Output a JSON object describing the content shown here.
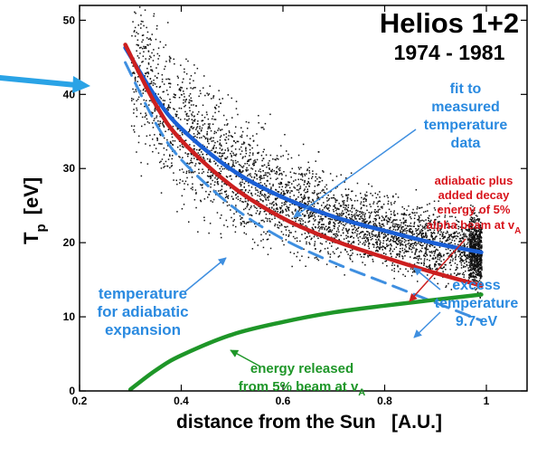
{
  "chart_data": {
    "type": "scatter",
    "title": "Helios 1+2",
    "subtitle": "1974 - 1981",
    "xlabel": "distance from the Sun   [A.U.]",
    "ylabel_main": "T",
    "ylabel_sub": "p",
    "ylabel_unit": "[eV]",
    "xlim": [
      0.2,
      1.08
    ],
    "ylim": [
      0,
      52
    ],
    "xticks": [
      0.2,
      0.4,
      0.6,
      0.8,
      1
    ],
    "xtick_labels": [
      "0.2",
      "0.4",
      "0.6",
      "0.8",
      "1"
    ],
    "yticks": [
      0,
      10,
      20,
      30,
      40,
      50
    ],
    "ytick_labels": [
      "0",
      "10",
      "20",
      "30",
      "40",
      "50"
    ],
    "scatter": {
      "x_range": [
        0.3,
        0.99
      ],
      "y_range": [
        5,
        52
      ]
    },
    "series": [
      {
        "kind": "fit",
        "color": "#1a5fd6",
        "x": [
          0.29,
          0.35,
          0.4,
          0.5,
          0.6,
          0.7,
          0.8,
          0.9,
          0.99
        ],
        "y": [
          46.3,
          39.6,
          35.4,
          29.8,
          26.1,
          23.5,
          21.6,
          19.9,
          18.7
        ]
      },
      {
        "kind": "adiabatic-plus-decay",
        "color": "#cc1f1f",
        "x": [
          0.29,
          0.35,
          0.4,
          0.5,
          0.6,
          0.7,
          0.8,
          0.9,
          0.99
        ],
        "y": [
          46.7,
          38.6,
          33.8,
          27.6,
          23.3,
          20.3,
          18.0,
          15.9,
          14.2
        ]
      },
      {
        "kind": "adiabatic",
        "color": "#3f8fe0",
        "x": [
          0.29,
          0.35,
          0.4,
          0.5,
          0.6,
          0.7,
          0.8,
          0.9,
          0.99
        ],
        "y": [
          44.3,
          36.1,
          31.2,
          24.9,
          20.5,
          17.3,
          14.6,
          11.9,
          9.5
        ]
      },
      {
        "kind": "energy-released",
        "color": "#1e9628",
        "x": [
          0.3,
          0.35,
          0.4,
          0.5,
          0.6,
          0.7,
          0.8,
          0.9,
          0.99
        ],
        "y": [
          0.2,
          2.8,
          4.8,
          7.6,
          9.3,
          10.6,
          11.5,
          12.3,
          13.0
        ]
      }
    ],
    "annotations": {
      "fit": [
        "fit to",
        "measured",
        "temperature",
        "data"
      ],
      "decay": [
        "adiabatic plus",
        "added decay",
        "energy of 5%",
        "alpha beam at v"
      ],
      "decay_sub": "A",
      "adiabatic": [
        "temperature",
        "for adiabatic",
        "expansion"
      ],
      "excess": [
        "excess",
        "temperature",
        "9.7 eV"
      ],
      "released": [
        "energy released",
        "from 5% beam at v"
      ],
      "released_sub": "A"
    },
    "colors": {
      "fit_text": "#2a8ae0",
      "decay_text": "#d8141c",
      "released_text": "#1e9628",
      "arrow_big": "#2aa3e6",
      "dots": "#111111"
    },
    "grid": false,
    "legend": "none"
  }
}
